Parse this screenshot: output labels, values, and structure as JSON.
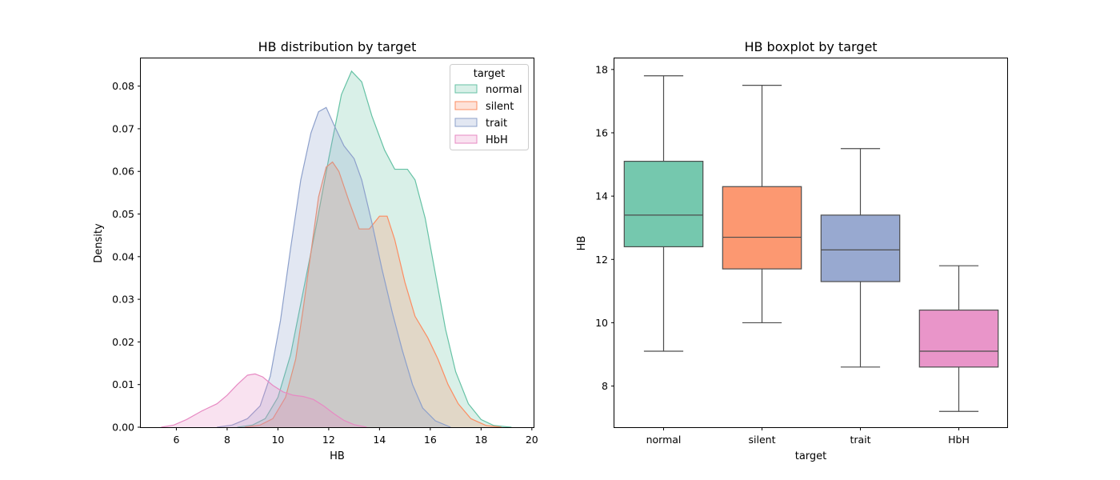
{
  "chart_data": [
    {
      "type": "area",
      "title": "HB distribution by target",
      "xlabel": "HB",
      "ylabel": "Density",
      "xlim": [
        4.6,
        20.1
      ],
      "ylim": [
        0,
        0.0865
      ],
      "xticks": [
        6,
        8,
        10,
        12,
        14,
        16,
        18,
        20
      ],
      "yticks": [
        0.0,
        0.01,
        0.02,
        0.03,
        0.04,
        0.05,
        0.06,
        0.07,
        0.08
      ],
      "ytick_labels": [
        "0.00",
        "0.01",
        "0.02",
        "0.03",
        "0.04",
        "0.05",
        "0.06",
        "0.07",
        "0.08"
      ],
      "legend_title": "target",
      "legend_position": "top-right",
      "series": [
        {
          "name": "normal",
          "color": "#66c2a5",
          "points": [
            [
              8.4,
              0
            ],
            [
              9.0,
              0.0005
            ],
            [
              9.5,
              0.002
            ],
            [
              10.0,
              0.007
            ],
            [
              10.5,
              0.017
            ],
            [
              11.0,
              0.032
            ],
            [
              11.5,
              0.047
            ],
            [
              12.0,
              0.063
            ],
            [
              12.5,
              0.078
            ],
            [
              12.9,
              0.0835
            ],
            [
              13.3,
              0.081
            ],
            [
              13.7,
              0.073
            ],
            [
              14.2,
              0.065
            ],
            [
              14.6,
              0.0605
            ],
            [
              15.1,
              0.0605
            ],
            [
              15.4,
              0.058
            ],
            [
              15.8,
              0.049
            ],
            [
              16.2,
              0.036
            ],
            [
              16.6,
              0.023
            ],
            [
              17.0,
              0.013
            ],
            [
              17.5,
              0.0055
            ],
            [
              18.0,
              0.0018
            ],
            [
              18.5,
              0.0004
            ],
            [
              19.2,
              0
            ]
          ]
        },
        {
          "name": "silent",
          "color": "#fc8d62",
          "points": [
            [
              8.7,
              0
            ],
            [
              9.3,
              0.0005
            ],
            [
              9.8,
              0.002
            ],
            [
              10.3,
              0.007
            ],
            [
              10.7,
              0.016
            ],
            [
              11.0,
              0.028
            ],
            [
              11.3,
              0.041
            ],
            [
              11.6,
              0.054
            ],
            [
              11.9,
              0.061
            ],
            [
              12.15,
              0.0622
            ],
            [
              12.4,
              0.06
            ],
            [
              12.8,
              0.053
            ],
            [
              13.2,
              0.0465
            ],
            [
              13.6,
              0.0465
            ],
            [
              14.0,
              0.0495
            ],
            [
              14.3,
              0.0495
            ],
            [
              14.6,
              0.044
            ],
            [
              15.0,
              0.034
            ],
            [
              15.4,
              0.026
            ],
            [
              15.9,
              0.021
            ],
            [
              16.3,
              0.016
            ],
            [
              16.7,
              0.01
            ],
            [
              17.1,
              0.0055
            ],
            [
              17.6,
              0.002
            ],
            [
              18.2,
              0.0004
            ],
            [
              18.8,
              0
            ]
          ]
        },
        {
          "name": "trait",
          "color": "#8da0cb",
          "points": [
            [
              7.6,
              0
            ],
            [
              8.2,
              0.0005
            ],
            [
              8.8,
              0.002
            ],
            [
              9.3,
              0.005
            ],
            [
              9.7,
              0.012
            ],
            [
              10.1,
              0.025
            ],
            [
              10.5,
              0.042
            ],
            [
              10.9,
              0.058
            ],
            [
              11.3,
              0.069
            ],
            [
              11.6,
              0.074
            ],
            [
              11.9,
              0.075
            ],
            [
              12.2,
              0.071
            ],
            [
              12.6,
              0.066
            ],
            [
              13.0,
              0.063
            ],
            [
              13.3,
              0.058
            ],
            [
              13.7,
              0.048
            ],
            [
              14.1,
              0.037
            ],
            [
              14.5,
              0.027
            ],
            [
              14.9,
              0.018
            ],
            [
              15.3,
              0.01
            ],
            [
              15.7,
              0.0045
            ],
            [
              16.2,
              0.0015
            ],
            [
              16.8,
              0
            ]
          ]
        },
        {
          "name": "HbH",
          "color": "#e78ac3",
          "points": [
            [
              5.4,
              0
            ],
            [
              5.9,
              0.0005
            ],
            [
              6.4,
              0.0018
            ],
            [
              7.0,
              0.0038
            ],
            [
              7.6,
              0.0055
            ],
            [
              8.0,
              0.0075
            ],
            [
              8.4,
              0.01
            ],
            [
              8.8,
              0.0122
            ],
            [
              9.1,
              0.0125
            ],
            [
              9.4,
              0.0118
            ],
            [
              9.8,
              0.0098
            ],
            [
              10.2,
              0.0083
            ],
            [
              10.6,
              0.0075
            ],
            [
              11.0,
              0.0072
            ],
            [
              11.4,
              0.0065
            ],
            [
              11.8,
              0.005
            ],
            [
              12.2,
              0.0032
            ],
            [
              12.6,
              0.0016
            ],
            [
              13.0,
              0.0006
            ],
            [
              13.5,
              0
            ]
          ]
        }
      ]
    },
    {
      "type": "box",
      "title": "HB boxplot by target",
      "xlabel": "target",
      "ylabel": "HB",
      "ylim": [
        6.7,
        18.35
      ],
      "yticks": [
        8,
        10,
        12,
        14,
        16,
        18
      ],
      "categories": [
        "normal",
        "silent",
        "trait",
        "HbH"
      ],
      "boxes": [
        {
          "name": "normal",
          "color": "#66c2a5",
          "min": 9.1,
          "q1": 12.4,
          "median": 13.4,
          "q3": 15.1,
          "max": 17.8
        },
        {
          "name": "silent",
          "color": "#fc8d62",
          "min": 10.0,
          "q1": 11.7,
          "median": 12.7,
          "q3": 14.3,
          "max": 17.5
        },
        {
          "name": "trait",
          "color": "#8da0cb",
          "min": 8.6,
          "q1": 11.3,
          "median": 12.3,
          "q3": 13.4,
          "max": 15.5
        },
        {
          "name": "HbH",
          "color": "#e78ac3",
          "min": 7.2,
          "q1": 8.6,
          "median": 9.1,
          "q3": 10.4,
          "max": 11.8
        }
      ]
    }
  ]
}
